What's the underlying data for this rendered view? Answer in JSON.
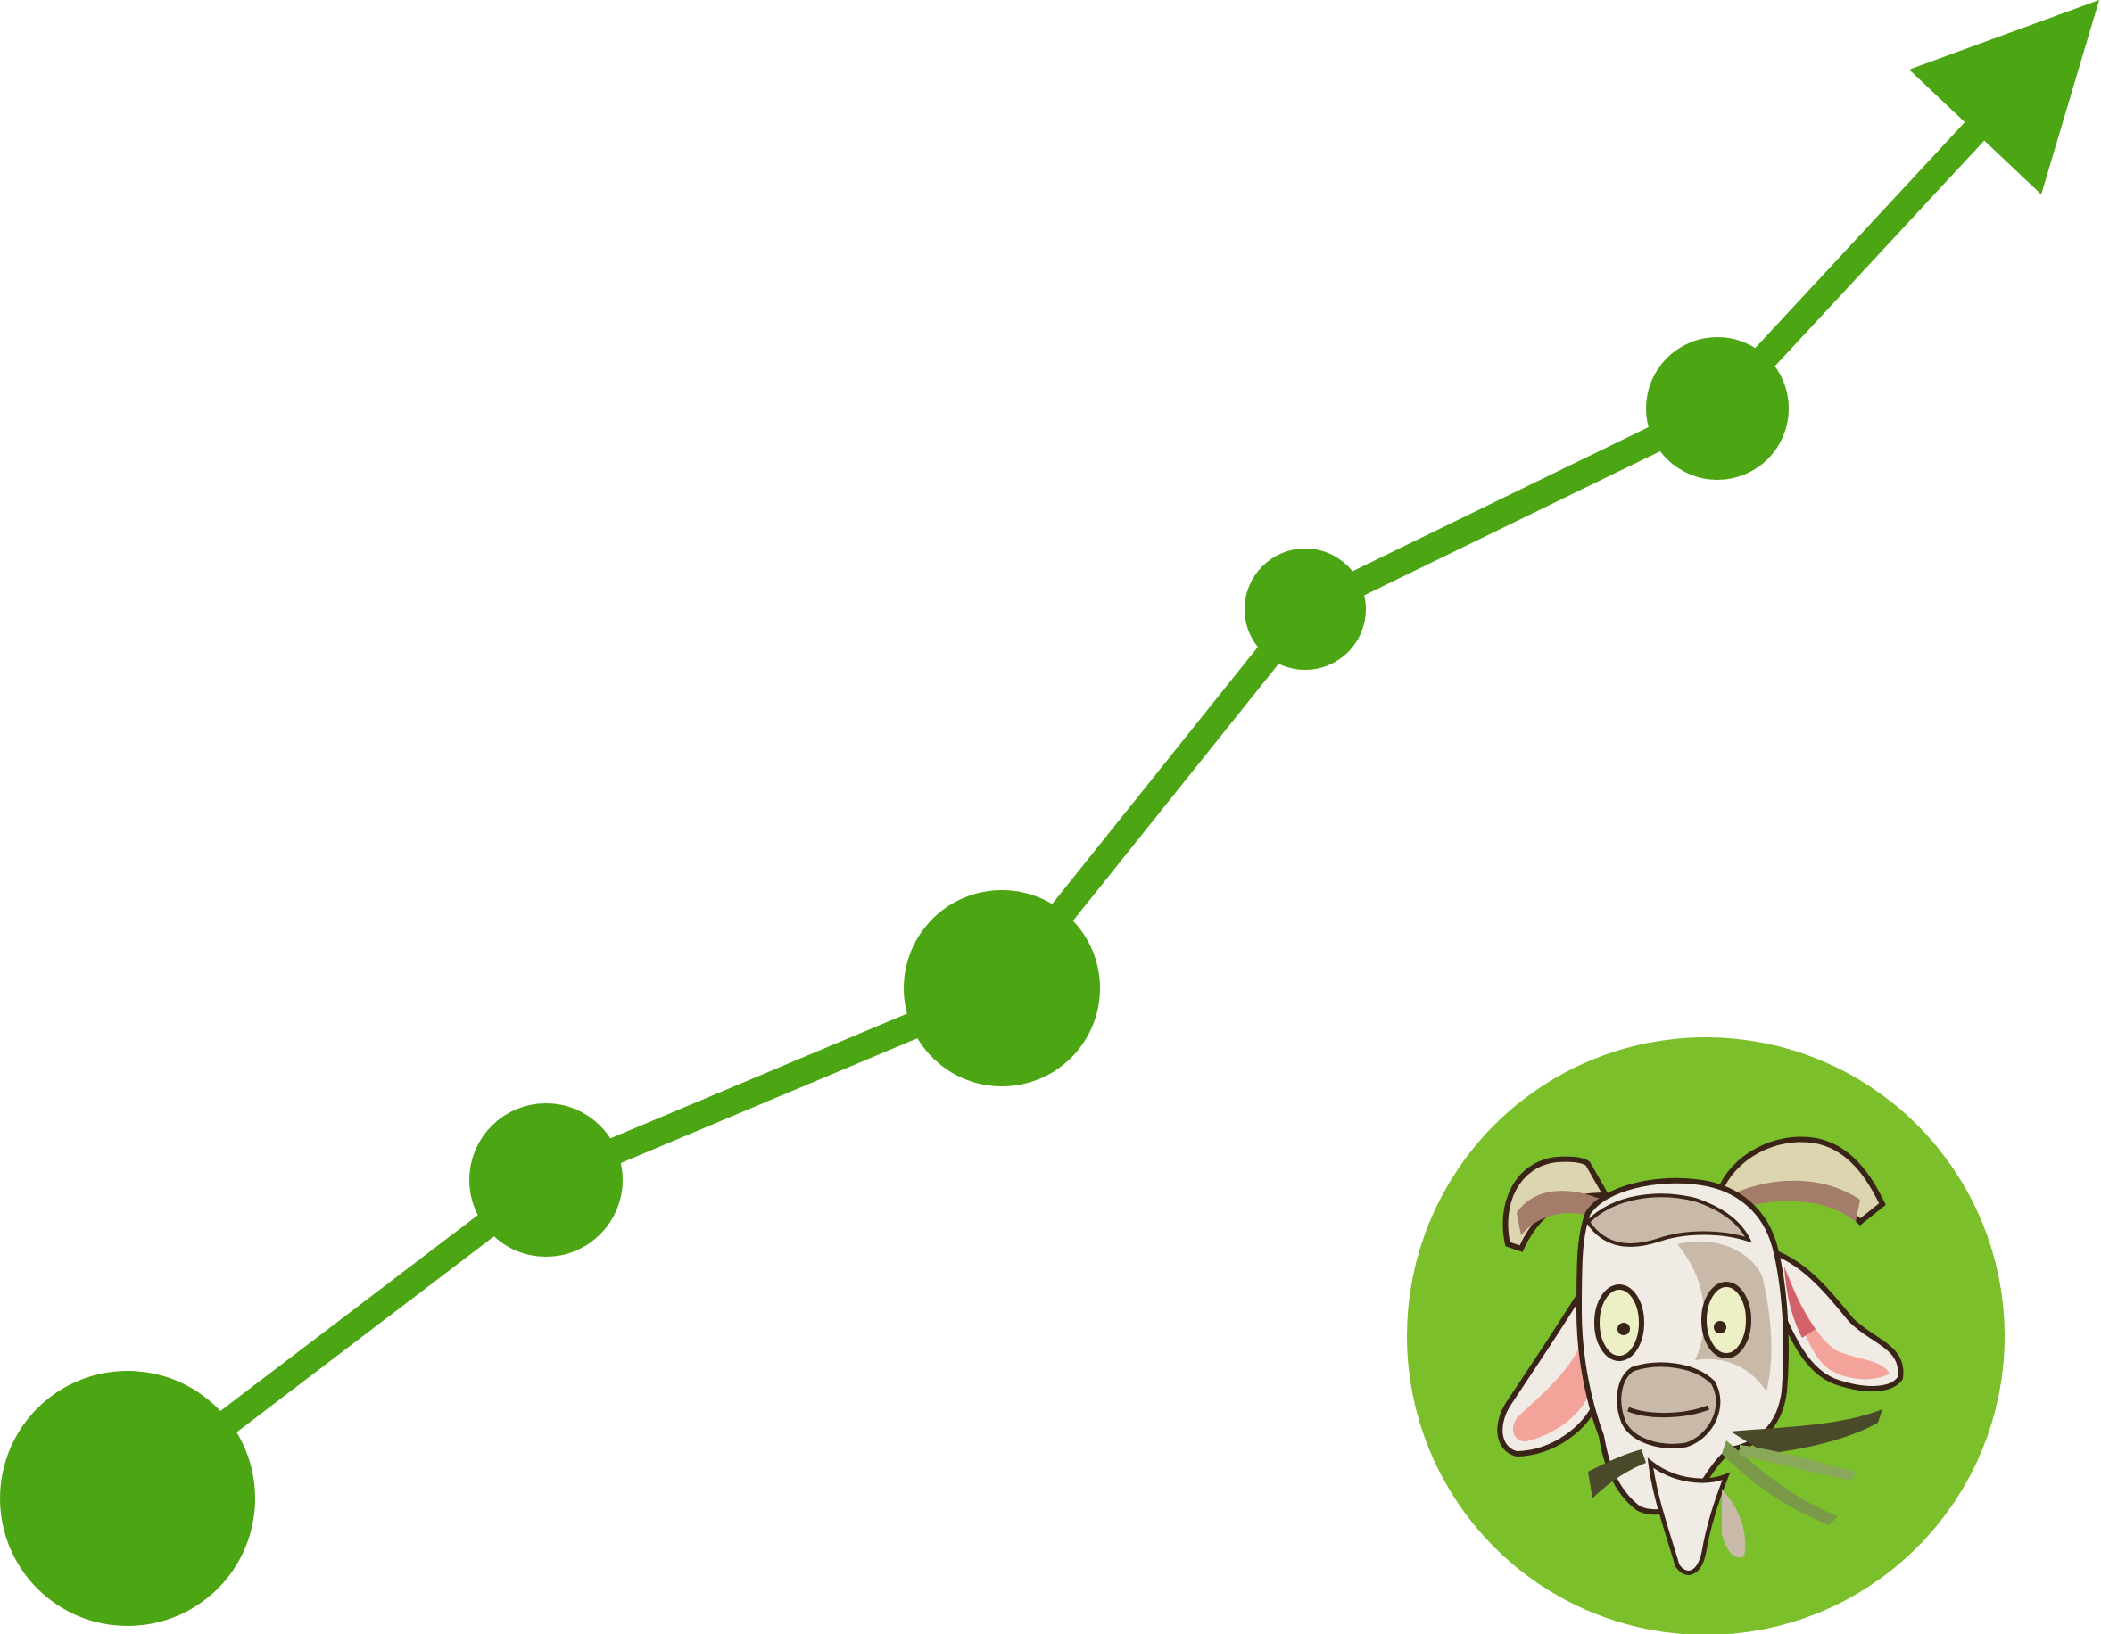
{
  "colors": {
    "background": "#ffffff",
    "trend_green": "#4ca614",
    "badge_green": "#7bbf2a",
    "goat_outline": "#3a2418",
    "goat_face": "#f0ebe4",
    "goat_shadow": "#c9b9a9",
    "goat_horn": "#ddd5b0",
    "goat_horn_dark": "#a47d6a",
    "goat_ear_inner": "#f4a39b",
    "goat_ear_inner_dark": "#d4616a",
    "goat_eye": "#edf0c4",
    "grass": "#7a9a4a",
    "grass_dark": "#4a4a2a"
  },
  "icons": {
    "trend": "upward-trend-arrow-icon",
    "mascot": "goat-mascot-icon"
  },
  "trend": {
    "point_count": 5,
    "direction": "up"
  }
}
